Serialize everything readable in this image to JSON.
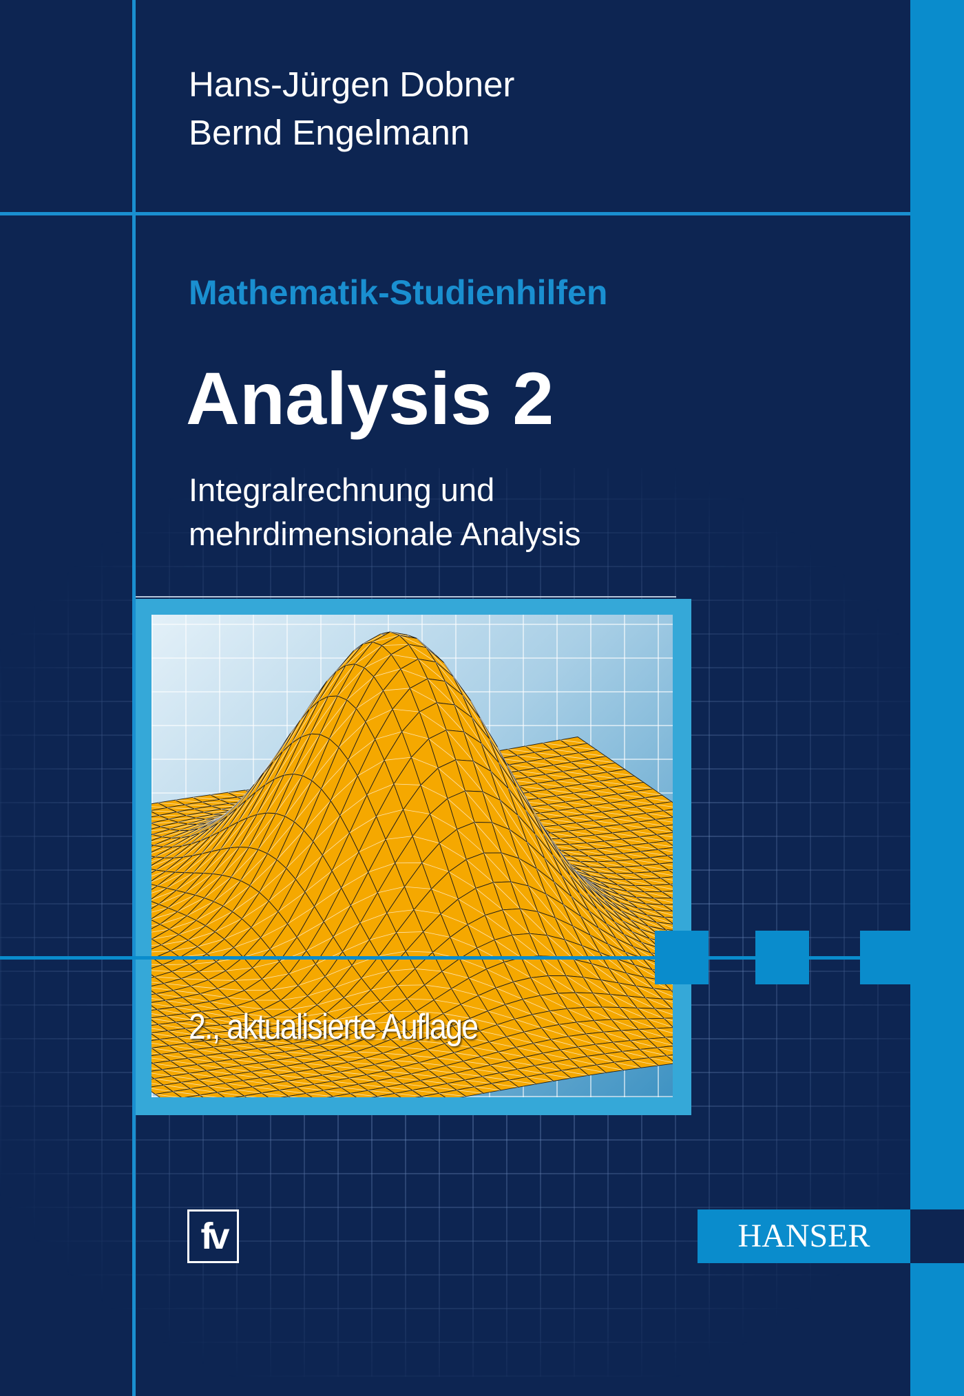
{
  "cover": {
    "authors": [
      "Hans-Jürgen Dobner",
      "Bernd Engelmann"
    ],
    "series": "Mathematik-Studienhilfen",
    "title": "Analysis 2",
    "subtitle_lines": [
      "Integralrechnung und",
      "mehrdimensionale Analysis"
    ],
    "edition": "2., aktualisierte Auflage",
    "imprint_logo": "fv",
    "publisher": "HANSER"
  },
  "colors": {
    "background": "#0d2552",
    "accent": "#0a8ccc",
    "frame": "#35a8d8",
    "surface": "#f5a800"
  },
  "illustration": {
    "subject": "gaussian-surface-plot"
  }
}
